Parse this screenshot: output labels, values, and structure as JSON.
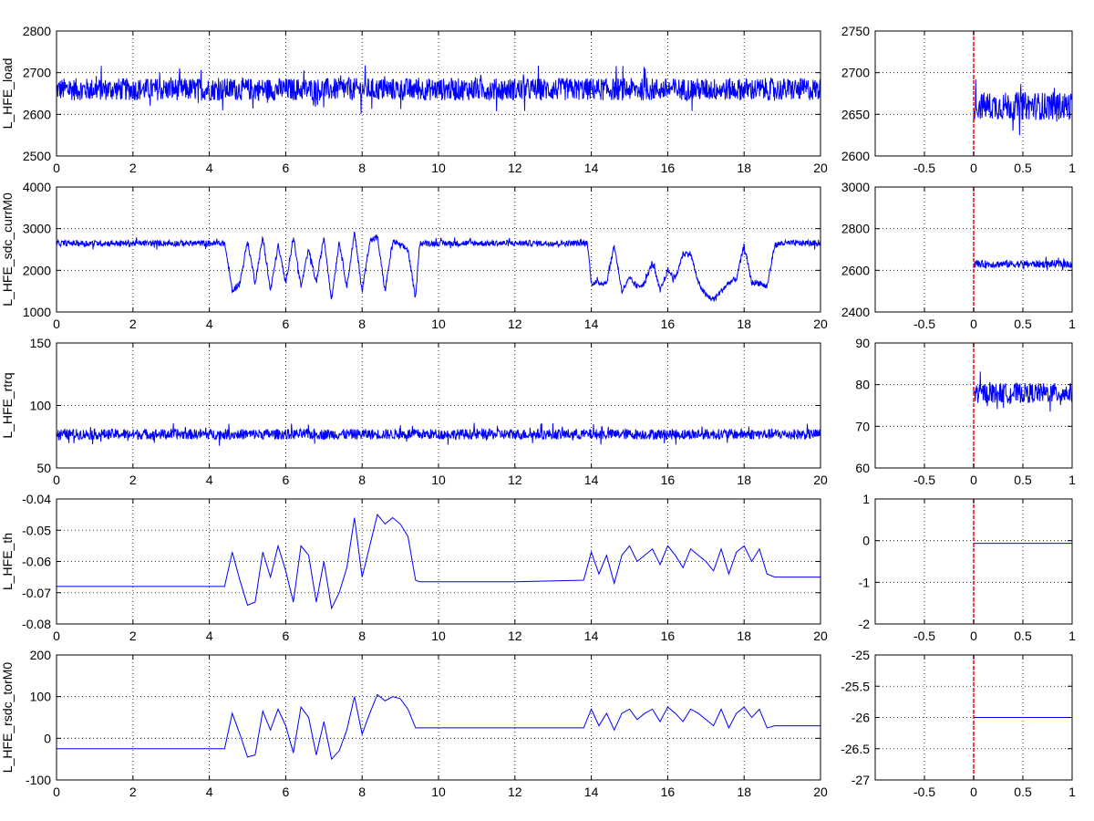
{
  "figure": {
    "background": "#ffffff",
    "axes_color": "#000000",
    "grid_color": "#000000"
  },
  "chart_data": [
    {
      "type": "line",
      "panel": "main",
      "row": 0,
      "ylabel": "L_HFE_load",
      "xlim": [
        0,
        20
      ],
      "ylim": [
        2500,
        2800
      ],
      "xticks": [
        0,
        2,
        4,
        6,
        8,
        10,
        12,
        14,
        16,
        18,
        20
      ],
      "yticks": [
        2500,
        2600,
        2700,
        2800
      ],
      "grid": true,
      "series": [
        {
          "color": "#0000ff",
          "style": "noise",
          "x": [
            0,
            20
          ],
          "y": [
            2660,
            2660
          ],
          "amplitude": 45
        }
      ]
    },
    {
      "type": "line",
      "panel": "zoom",
      "row": 0,
      "ylabel": "",
      "xlim": [
        -1,
        1
      ],
      "ylim": [
        2600,
        2750
      ],
      "xticks": [
        -0.5,
        0,
        0.5,
        1
      ],
      "yticks": [
        2600,
        2650,
        2700,
        2750
      ],
      "grid": true,
      "vline": {
        "x": 0,
        "color": "#ff0000"
      },
      "series": [
        {
          "color": "#0000ff",
          "style": "noise",
          "x": [
            0,
            1
          ],
          "y": [
            2660,
            2660
          ],
          "amplitude": 28
        }
      ]
    },
    {
      "type": "line",
      "panel": "main",
      "row": 1,
      "ylabel": "L_HFE_sdc_currM0",
      "xlim": [
        0,
        20
      ],
      "ylim": [
        1000,
        4000
      ],
      "xticks": [
        0,
        2,
        4,
        6,
        8,
        10,
        12,
        14,
        16,
        18,
        20
      ],
      "yticks": [
        1000,
        2000,
        3000,
        4000
      ],
      "grid": true,
      "series": [
        {
          "color": "#0000ff",
          "style": "noise",
          "x": [
            0,
            4.4,
            4.5,
            4.6,
            4.8,
            5.0,
            5.2,
            5.4,
            5.6,
            5.8,
            6.0,
            6.2,
            6.4,
            6.6,
            6.8,
            7.0,
            7.2,
            7.4,
            7.6,
            7.8,
            8.0,
            8.2,
            8.4,
            8.6,
            8.8,
            9.0,
            9.2,
            9.4,
            9.5,
            13.8,
            13.9,
            14.0,
            14.4,
            14.6,
            14.8,
            15.0,
            15.2,
            15.4,
            15.6,
            15.8,
            16.0,
            16.2,
            16.4,
            16.6,
            16.8,
            17.0,
            17.2,
            17.4,
            17.6,
            17.8,
            18.0,
            18.2,
            18.4,
            18.6,
            18.8,
            19.0,
            20
          ],
          "y": [
            2650,
            2650,
            2100,
            1500,
            1700,
            2700,
            1700,
            2800,
            1500,
            2600,
            1700,
            2800,
            1600,
            2500,
            1700,
            2800,
            1300,
            2700,
            1600,
            2900,
            1500,
            2700,
            2800,
            1500,
            2700,
            2600,
            2500,
            1300,
            2650,
            2650,
            2650,
            1700,
            1700,
            2600,
            1500,
            1800,
            1600,
            1700,
            2200,
            1500,
            2000,
            1800,
            2400,
            2400,
            1700,
            1400,
            1300,
            1500,
            1700,
            1800,
            2600,
            1700,
            1700,
            1600,
            2600,
            2650,
            2650
          ],
          "amplitude": 120
        }
      ]
    },
    {
      "type": "line",
      "panel": "zoom",
      "row": 1,
      "ylabel": "",
      "xlim": [
        -1,
        1
      ],
      "ylim": [
        2400,
        3000
      ],
      "xticks": [
        -0.5,
        0,
        0.5,
        1
      ],
      "yticks": [
        2400,
        2600,
        2800,
        3000
      ],
      "grid": true,
      "vline": {
        "x": 0,
        "color": "#ff0000"
      },
      "series": [
        {
          "color": "#0000ff",
          "style": "noise",
          "x": [
            0,
            1
          ],
          "y": [
            2630,
            2630
          ],
          "amplitude": 30
        }
      ]
    },
    {
      "type": "line",
      "panel": "main",
      "row": 2,
      "ylabel": "L_HFE_rtrq",
      "xlim": [
        0,
        20
      ],
      "ylim": [
        50,
        150
      ],
      "xticks": [
        0,
        2,
        4,
        6,
        8,
        10,
        12,
        14,
        16,
        18,
        20
      ],
      "yticks": [
        50,
        100,
        150
      ],
      "grid": true,
      "series": [
        {
          "color": "#0000ff",
          "style": "noise",
          "x": [
            0,
            20
          ],
          "y": [
            77,
            77
          ],
          "amplitude": 7
        }
      ]
    },
    {
      "type": "line",
      "panel": "zoom",
      "row": 2,
      "ylabel": "",
      "xlim": [
        -1,
        1
      ],
      "ylim": [
        60,
        90
      ],
      "xticks": [
        -0.5,
        0,
        0.5,
        1
      ],
      "yticks": [
        60,
        70,
        80,
        90
      ],
      "grid": true,
      "vline": {
        "x": 0,
        "color": "#ff0000"
      },
      "series": [
        {
          "color": "#0000ff",
          "style": "noise",
          "x": [
            0,
            1
          ],
          "y": [
            78,
            78
          ],
          "amplitude": 4
        }
      ]
    },
    {
      "type": "line",
      "panel": "main",
      "row": 3,
      "ylabel": "L_HFE_th",
      "xlim": [
        0,
        20
      ],
      "ylim": [
        -0.08,
        -0.04
      ],
      "xticks": [
        0,
        2,
        4,
        6,
        8,
        10,
        12,
        14,
        16,
        18,
        20
      ],
      "yticks": [
        -0.08,
        -0.07,
        -0.06,
        -0.05,
        -0.04
      ],
      "grid": true,
      "series": [
        {
          "color": "#0000ff",
          "style": "line",
          "x": [
            0,
            4.4,
            4.6,
            4.8,
            5.0,
            5.2,
            5.4,
            5.6,
            5.8,
            6.0,
            6.2,
            6.4,
            6.6,
            6.8,
            7.0,
            7.2,
            7.4,
            7.6,
            7.8,
            8.0,
            8.2,
            8.4,
            8.6,
            8.8,
            9.0,
            9.2,
            9.4,
            9.5,
            12.0,
            13.8,
            14.0,
            14.2,
            14.4,
            14.6,
            14.8,
            15.0,
            15.2,
            15.4,
            15.6,
            15.8,
            16.0,
            16.2,
            16.4,
            16.6,
            16.8,
            17.0,
            17.2,
            17.4,
            17.6,
            17.8,
            18.0,
            18.2,
            18.4,
            18.6,
            18.8,
            19.0,
            20
          ],
          "y": [
            -0.068,
            -0.068,
            -0.057,
            -0.066,
            -0.074,
            -0.073,
            -0.057,
            -0.065,
            -0.055,
            -0.063,
            -0.073,
            -0.055,
            -0.058,
            -0.073,
            -0.06,
            -0.075,
            -0.07,
            -0.062,
            -0.046,
            -0.065,
            -0.055,
            -0.045,
            -0.048,
            -0.046,
            -0.048,
            -0.052,
            -0.066,
            -0.0665,
            -0.0665,
            -0.066,
            -0.057,
            -0.064,
            -0.058,
            -0.067,
            -0.058,
            -0.055,
            -0.06,
            -0.058,
            -0.056,
            -0.061,
            -0.055,
            -0.058,
            -0.062,
            -0.056,
            -0.058,
            -0.06,
            -0.063,
            -0.056,
            -0.064,
            -0.057,
            -0.055,
            -0.06,
            -0.056,
            -0.064,
            -0.065,
            -0.065,
            -0.065
          ]
        }
      ]
    },
    {
      "type": "line",
      "panel": "zoom",
      "row": 3,
      "ylabel": "",
      "xlim": [
        -1,
        1
      ],
      "ylim": [
        -2,
        1
      ],
      "xticks": [
        -0.5,
        0,
        0.5,
        1
      ],
      "yticks": [
        -2,
        -1,
        0,
        1
      ],
      "grid": true,
      "vline": {
        "x": 0,
        "color": "#ff0000"
      },
      "series": [
        {
          "color": "#0000ff",
          "style": "line",
          "x": [
            0,
            1
          ],
          "y": [
            -0.065,
            -0.065
          ]
        }
      ]
    },
    {
      "type": "line",
      "panel": "main",
      "row": 4,
      "ylabel": "L_HFE_rsdc_torM0",
      "xlim": [
        0,
        20
      ],
      "ylim": [
        -100,
        200
      ],
      "xticks": [
        0,
        2,
        4,
        6,
        8,
        10,
        12,
        14,
        16,
        18,
        20
      ],
      "yticks": [
        -100,
        0,
        100,
        200
      ],
      "grid": true,
      "series": [
        {
          "color": "#0000ff",
          "style": "line",
          "x": [
            0,
            4.4,
            4.6,
            4.8,
            5.0,
            5.2,
            5.4,
            5.6,
            5.8,
            6.0,
            6.2,
            6.4,
            6.6,
            6.8,
            7.0,
            7.2,
            7.4,
            7.6,
            7.8,
            8.0,
            8.2,
            8.4,
            8.6,
            8.8,
            9.0,
            9.2,
            9.4,
            9.5,
            12.0,
            13.8,
            14.0,
            14.2,
            14.4,
            14.6,
            14.8,
            15.0,
            15.2,
            15.4,
            15.6,
            15.8,
            16.0,
            16.2,
            16.4,
            16.6,
            16.8,
            17.0,
            17.2,
            17.4,
            17.6,
            17.8,
            18.0,
            18.2,
            18.4,
            18.6,
            18.8,
            19.0,
            20
          ],
          "y": [
            -25,
            -25,
            60,
            10,
            -45,
            -40,
            65,
            20,
            70,
            30,
            -35,
            75,
            50,
            -40,
            40,
            -50,
            -30,
            20,
            100,
            10,
            60,
            105,
            90,
            100,
            95,
            70,
            25,
            25,
            25,
            25,
            70,
            30,
            60,
            20,
            60,
            70,
            45,
            60,
            70,
            40,
            75,
            60,
            40,
            70,
            60,
            45,
            30,
            70,
            25,
            60,
            75,
            50,
            70,
            25,
            30,
            30,
            30
          ]
        }
      ]
    },
    {
      "type": "line",
      "panel": "zoom",
      "row": 4,
      "ylabel": "",
      "xlim": [
        -1,
        1
      ],
      "ylim": [
        -27,
        -25
      ],
      "xticks": [
        -0.5,
        0,
        0.5,
        1
      ],
      "yticks": [
        -27,
        -26.5,
        -26,
        -25.5,
        -25
      ],
      "grid": true,
      "vline": {
        "x": 0,
        "color": "#ff0000"
      },
      "series": [
        {
          "color": "#0000ff",
          "style": "line",
          "x": [
            0,
            1
          ],
          "y": [
            -26,
            -26
          ]
        }
      ]
    }
  ]
}
